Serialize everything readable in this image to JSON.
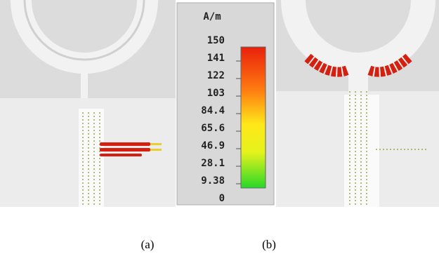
{
  "colorbar": {
    "unit": "A/m",
    "ticks": [
      "150",
      "141",
      "122",
      "103",
      "84.4",
      "65.6",
      "46.9",
      "28.1",
      "9.38",
      "0"
    ]
  },
  "captions": [
    "(a)",
    "(b)"
  ]
}
